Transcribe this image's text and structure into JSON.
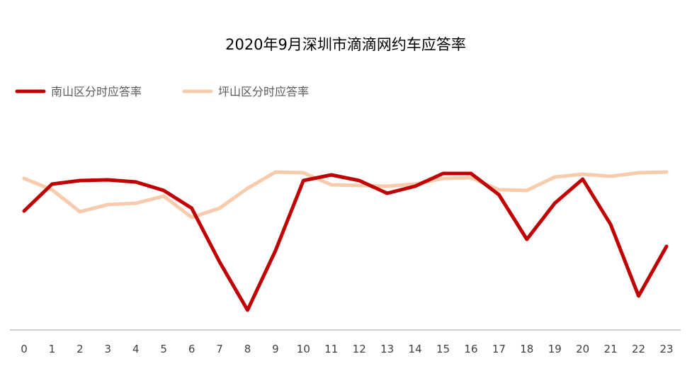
{
  "chart_data": {
    "type": "line",
    "title": "2020年9月深圳市滴滴网约车应答率",
    "xlabel": "",
    "ylabel": "",
    "x": [
      0,
      1,
      2,
      3,
      4,
      5,
      6,
      7,
      8,
      9,
      10,
      11,
      12,
      13,
      14,
      15,
      16,
      17,
      18,
      19,
      20,
      21,
      22,
      23
    ],
    "y_axis_visible": false,
    "y_units": "relative (no y-axis printed; values estimated on a 0–300 relative scale)",
    "ylim": [
      0,
      300
    ],
    "grid": false,
    "legend_position": "top-left",
    "series": [
      {
        "name": "南山区分时应答率",
        "color": "#C00000",
        "values": [
          168,
          206,
          211,
          212,
          209,
          197,
          172,
          96,
          28,
          112,
          211,
          219,
          211,
          193,
          203,
          221,
          221,
          191,
          128,
          179,
          213,
          149,
          48,
          118
        ]
      },
      {
        "name": "坪山区分时应答率",
        "color": "#F8CBAD",
        "values": [
          214,
          198,
          167,
          177,
          179,
          189,
          159,
          172,
          200,
          223,
          222,
          205,
          204,
          203,
          206,
          214,
          215,
          198,
          197,
          216,
          220,
          217,
          222,
          223
        ]
      }
    ],
    "axis_color": "#BFBFBF"
  }
}
